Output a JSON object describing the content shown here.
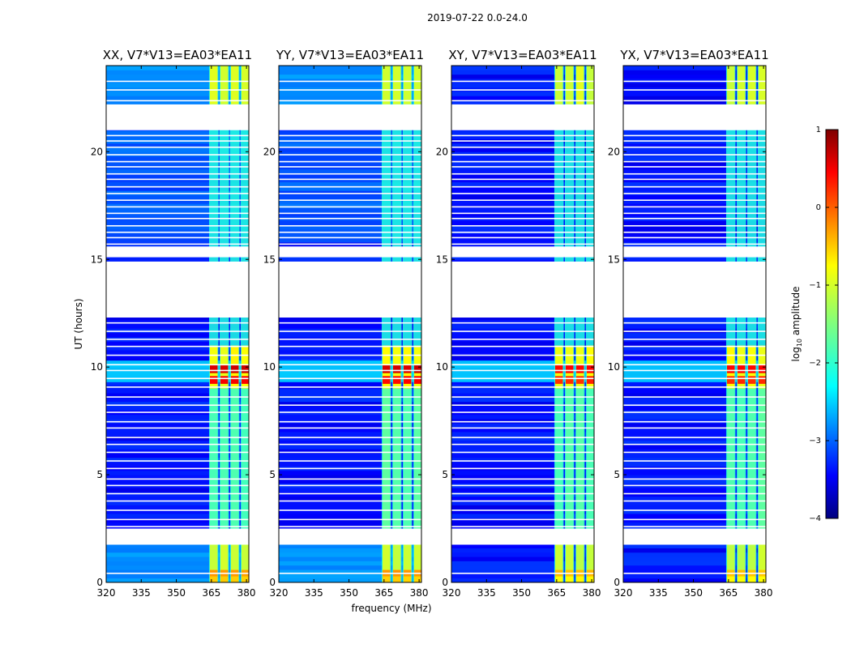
{
  "figure": {
    "suptitle": "2019-07-22 0.0-24.0"
  },
  "chart_data": {
    "type": "heatmap",
    "title": "2019-07-22 0.0-24.0",
    "xlabel": "frequency (MHz)",
    "ylabel": "UT (hours)",
    "xlim": [
      320,
      381
    ],
    "ylim": [
      0,
      24
    ],
    "xticks": [
      "320",
      "335",
      "350",
      "365",
      "380"
    ],
    "xtick_values": [
      320,
      335,
      350,
      365,
      380
    ],
    "yticks": [
      "0",
      "5",
      "10",
      "15",
      "20"
    ],
    "ytick_values": [
      0,
      5,
      10,
      15,
      20
    ],
    "panels": [
      {
        "title": "XX, V7*V13=EA03*EA11"
      },
      {
        "title": "YY, V7*V13=EA03*EA11"
      },
      {
        "title": "XY, V7*V13=EA03*EA11"
      },
      {
        "title": "YX, V7*V13=EA03*EA11"
      }
    ],
    "colorbar": {
      "label": "log10 amplitude",
      "label_main": "log",
      "label_sub": "10",
      "label_rest": " amplitude",
      "range": [
        -4,
        1
      ],
      "ticks": [
        "1",
        "0",
        "−1",
        "−2",
        "−3",
        "−4"
      ],
      "tick_values": [
        1,
        0,
        -1,
        -2,
        -3,
        -4
      ],
      "colormap": [
        "#00007f",
        "#0000ff",
        "#007fff",
        "#00ffff",
        "#7fff7f",
        "#ffff00",
        "#ff7f00",
        "#ff0000",
        "#7f0000"
      ]
    },
    "data_gaps_hours": [
      [
        1.75,
        2.5
      ],
      [
        12.3,
        14.9
      ],
      [
        15.1,
        15.6
      ],
      [
        21.0,
        22.2
      ]
    ],
    "rfi_bands_mhz": [
      [
        364,
        368
      ],
      [
        368.5,
        372.5
      ],
      [
        373,
        377
      ],
      [
        377.5,
        381.5
      ]
    ],
    "bright_times_hours": [
      {
        "t": 9.9,
        "level": 0.6
      },
      {
        "t": 9.4,
        "level": 0.4
      },
      {
        "t": 0.4,
        "level": -0.3
      },
      {
        "t": 0.1,
        "level": -0.6
      }
    ]
  }
}
